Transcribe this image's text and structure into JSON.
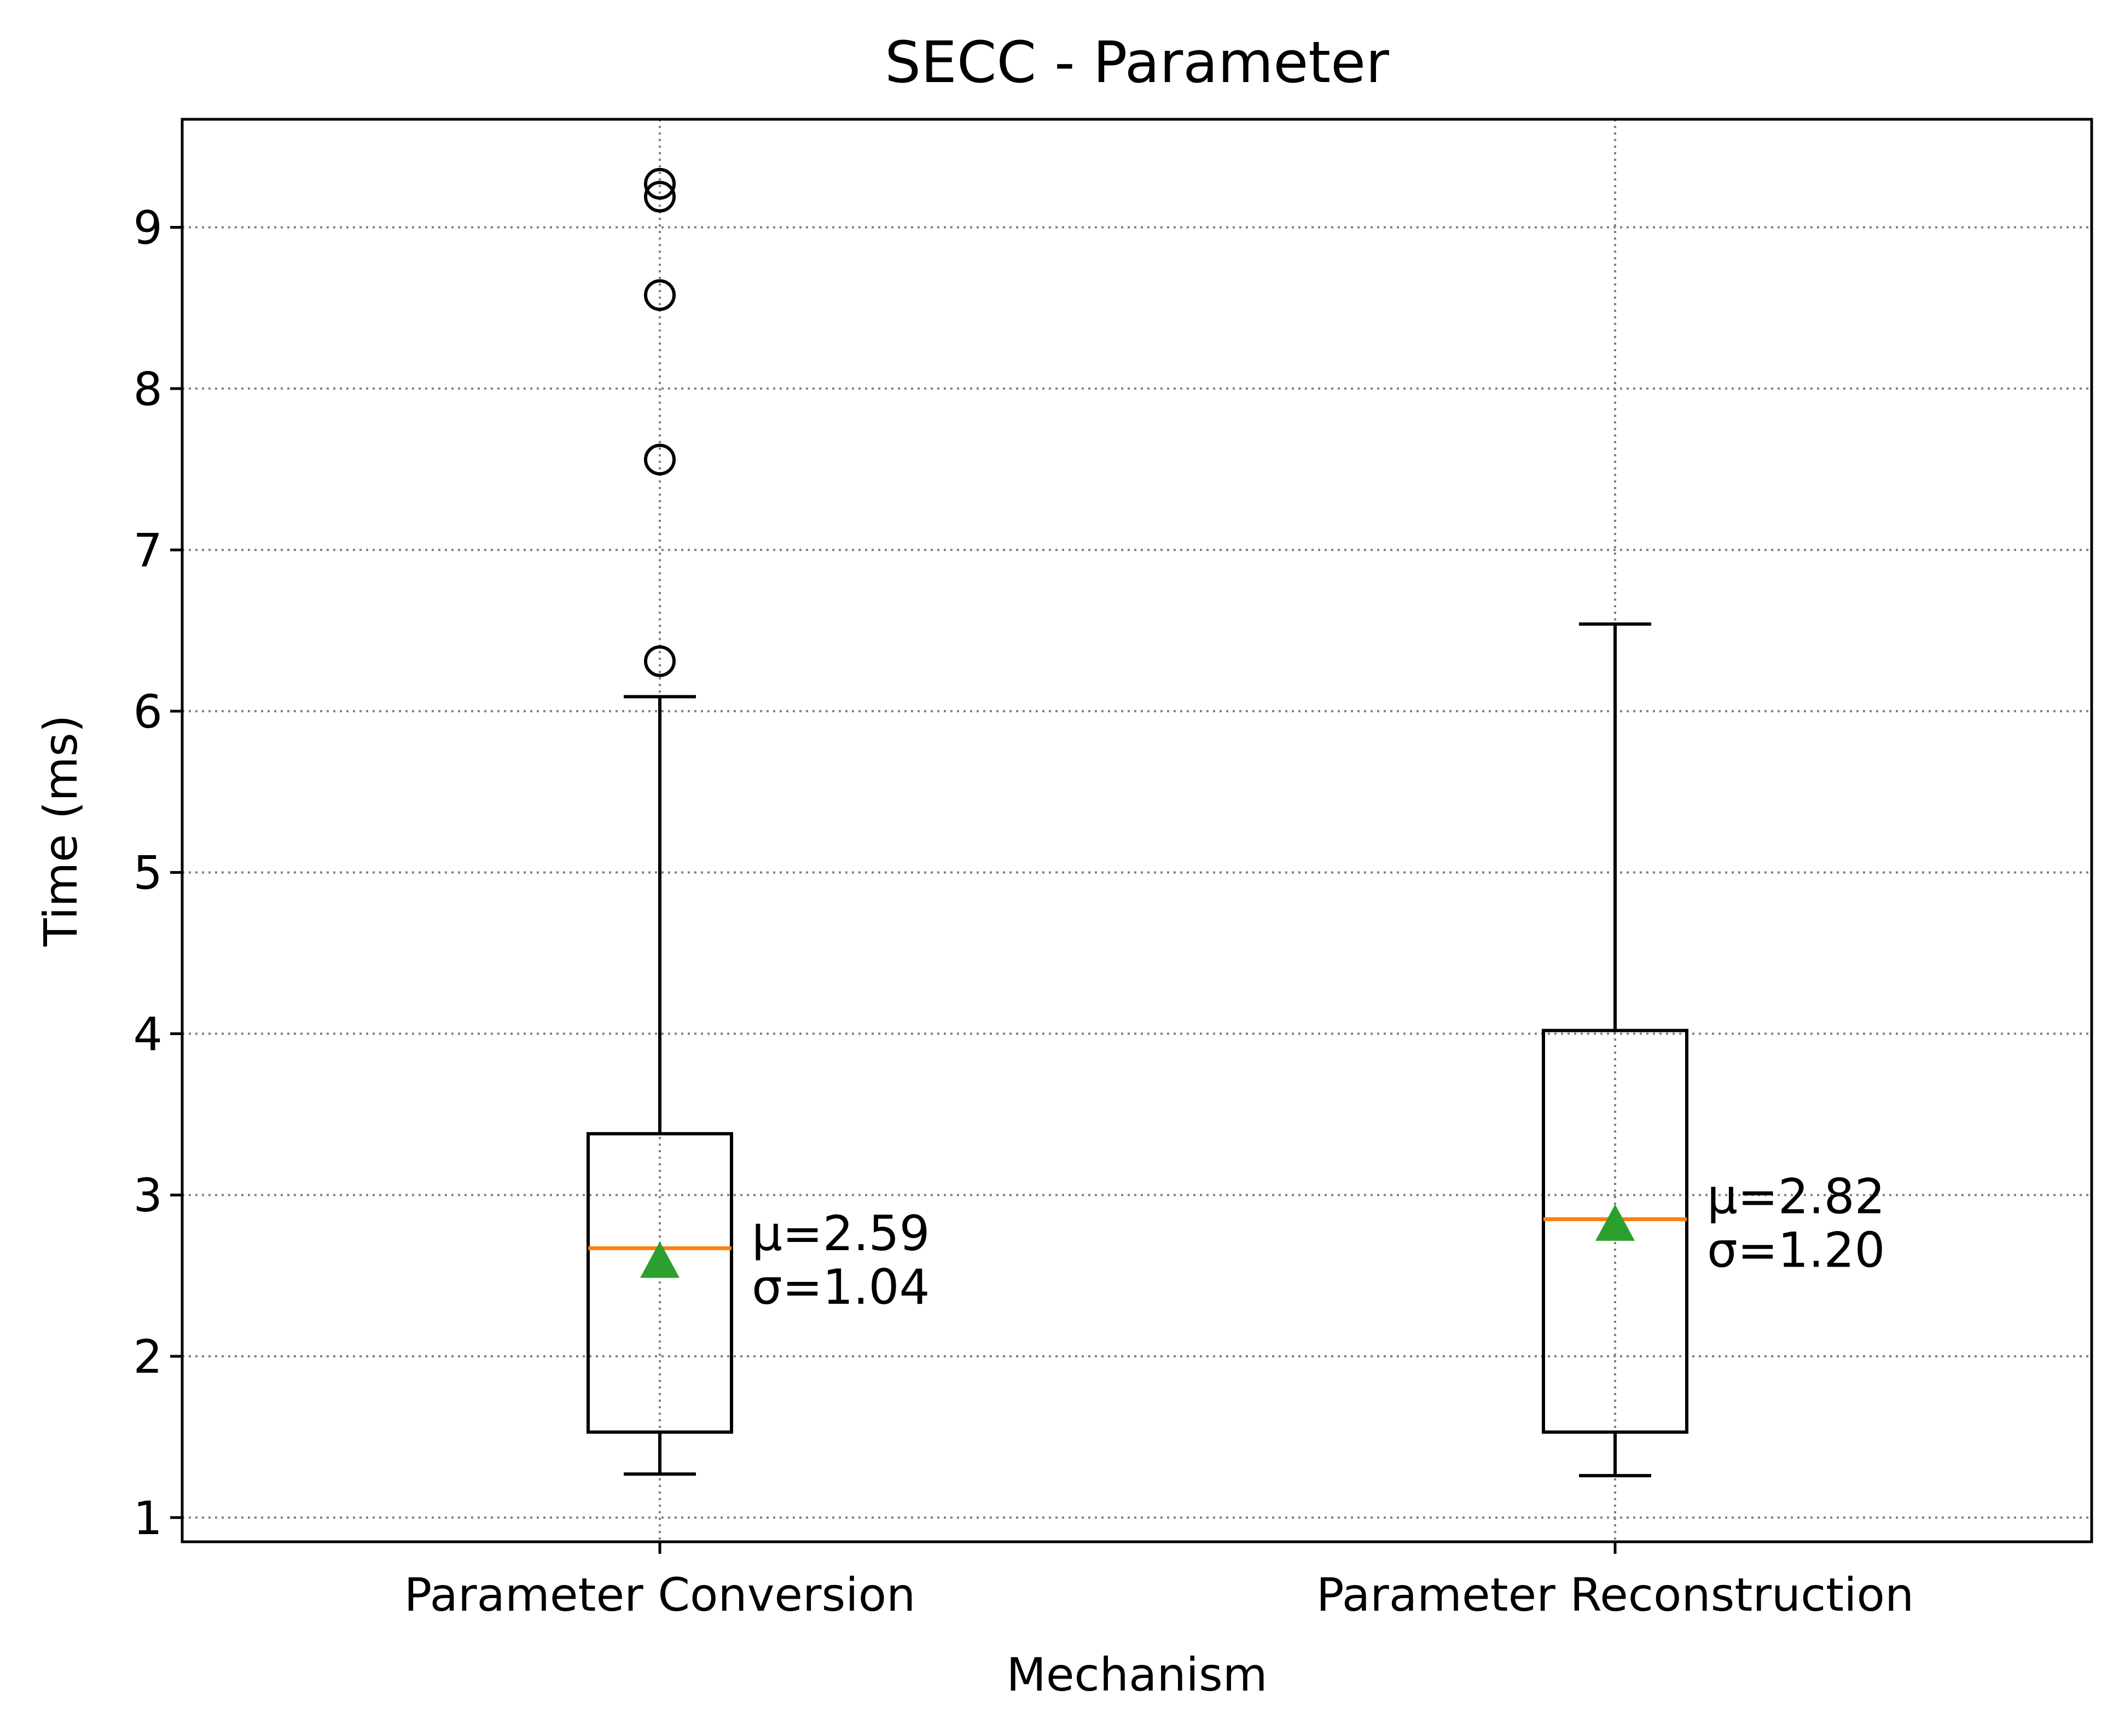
{
  "chart_data": {
    "type": "box",
    "title": "SECC - Parameter",
    "xlabel": "Mechanism",
    "ylabel": "Time (ms)",
    "ylim": [
      0.85,
      9.67
    ],
    "yticks": [
      1,
      2,
      3,
      4,
      5,
      6,
      7,
      8,
      9
    ],
    "grid": true,
    "categories": [
      "Parameter Conversion",
      "Parameter Reconstruction"
    ],
    "boxes": [
      {
        "category": "Parameter Conversion",
        "whisker_low": 1.27,
        "q1": 1.53,
        "median": 2.67,
        "q3": 3.38,
        "whisker_high": 6.09,
        "mean": 2.59,
        "outliers": [
          6.31,
          7.56,
          8.58,
          9.19,
          9.27
        ],
        "annotation_mu": "μ=2.59",
        "annotation_sigma": "σ=1.04"
      },
      {
        "category": "Parameter Reconstruction",
        "whisker_low": 1.26,
        "q1": 1.53,
        "median": 2.85,
        "q3": 4.02,
        "whisker_high": 6.54,
        "mean": 2.82,
        "outliers": [],
        "annotation_mu": "μ=2.82",
        "annotation_sigma": "σ=1.20"
      }
    ],
    "colors": {
      "box": "#000000",
      "median": "#ff7f0e",
      "mean": "#2ca02c",
      "grid": "#808080"
    }
  }
}
